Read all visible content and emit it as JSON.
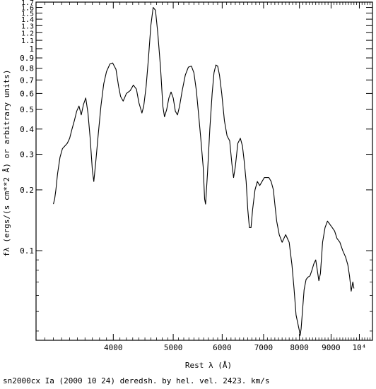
{
  "chart_data": {
    "type": "line",
    "title": "",
    "caption": "sn2000cx Ia (2000 10 24) deredsh. by hel. vel.  2423. km/s",
    "xlabel": "Rest λ (Å)",
    "ylabel": "fλ (ergs/(s cm**2 Å) or arbitrary units)",
    "x_scale": "log",
    "y_scale": "log",
    "xlim": [
      3000,
      10500
    ],
    "ylim": [
      0.036,
      1.7
    ],
    "x_ticks": [
      {
        "value": 4000,
        "label": "4000"
      },
      {
        "value": 5000,
        "label": "5000"
      },
      {
        "value": 6000,
        "label": "6000"
      },
      {
        "value": 7000,
        "label": "7000"
      },
      {
        "value": 8000,
        "label": "8000"
      },
      {
        "value": 9000,
        "label": "9000"
      },
      {
        "value": 10000,
        "label": "10⁴"
      }
    ],
    "y_ticks": [
      {
        "value": 0.1,
        "label": "0.1"
      },
      {
        "value": 0.2,
        "label": "0.2"
      },
      {
        "value": 0.3,
        "label": "0.3"
      },
      {
        "value": 0.4,
        "label": "0.4"
      },
      {
        "value": 0.5,
        "label": "0.5"
      },
      {
        "value": 0.6,
        "label": "0.6"
      },
      {
        "value": 0.7,
        "label": "0.7"
      },
      {
        "value": 0.8,
        "label": "0.8"
      },
      {
        "value": 0.9,
        "label": "0.9"
      },
      {
        "value": 1.0,
        "label": "1"
      },
      {
        "value": 1.1,
        "label": "1.1"
      },
      {
        "value": 1.2,
        "label": "1.2"
      },
      {
        "value": 1.3,
        "label": "1.3"
      },
      {
        "value": 1.4,
        "label": "1.4"
      },
      {
        "value": 1.5,
        "label": "1.5"
      },
      {
        "value": 1.6,
        "label": "1.6"
      },
      {
        "value": 1.7,
        "label": "1.7"
      }
    ],
    "series": [
      {
        "points": [
          [
            3200,
            0.17
          ],
          [
            3215,
            0.18
          ],
          [
            3230,
            0.2
          ],
          [
            3250,
            0.24
          ],
          [
            3280,
            0.29
          ],
          [
            3310,
            0.32
          ],
          [
            3340,
            0.33
          ],
          [
            3370,
            0.34
          ],
          [
            3400,
            0.36
          ],
          [
            3430,
            0.4
          ],
          [
            3460,
            0.44
          ],
          [
            3490,
            0.49
          ],
          [
            3520,
            0.52
          ],
          [
            3550,
            0.47
          ],
          [
            3580,
            0.53
          ],
          [
            3610,
            0.57
          ],
          [
            3640,
            0.48
          ],
          [
            3670,
            0.36
          ],
          [
            3700,
            0.25
          ],
          [
            3720,
            0.22
          ],
          [
            3745,
            0.27
          ],
          [
            3780,
            0.37
          ],
          [
            3820,
            0.52
          ],
          [
            3860,
            0.67
          ],
          [
            3900,
            0.77
          ],
          [
            3950,
            0.84
          ],
          [
            3990,
            0.85
          ],
          [
            4040,
            0.79
          ],
          [
            4080,
            0.65
          ],
          [
            4110,
            0.58
          ],
          [
            4150,
            0.55
          ],
          [
            4200,
            0.6
          ],
          [
            4260,
            0.62
          ],
          [
            4310,
            0.66
          ],
          [
            4360,
            0.63
          ],
          [
            4400,
            0.54
          ],
          [
            4450,
            0.48
          ],
          [
            4480,
            0.52
          ],
          [
            4520,
            0.65
          ],
          [
            4560,
            0.9
          ],
          [
            4600,
            1.3
          ],
          [
            4640,
            1.6
          ],
          [
            4680,
            1.55
          ],
          [
            4720,
            1.2
          ],
          [
            4770,
            0.8
          ],
          [
            4810,
            0.52
          ],
          [
            4840,
            0.46
          ],
          [
            4880,
            0.5
          ],
          [
            4920,
            0.57
          ],
          [
            4960,
            0.61
          ],
          [
            5000,
            0.57
          ],
          [
            5040,
            0.49
          ],
          [
            5080,
            0.47
          ],
          [
            5120,
            0.52
          ],
          [
            5170,
            0.62
          ],
          [
            5230,
            0.74
          ],
          [
            5290,
            0.81
          ],
          [
            5350,
            0.82
          ],
          [
            5400,
            0.76
          ],
          [
            5450,
            0.62
          ],
          [
            5500,
            0.46
          ],
          [
            5540,
            0.36
          ],
          [
            5590,
            0.26
          ],
          [
            5620,
            0.18
          ],
          [
            5640,
            0.17
          ],
          [
            5680,
            0.24
          ],
          [
            5730,
            0.4
          ],
          [
            5780,
            0.6
          ],
          [
            5820,
            0.76
          ],
          [
            5860,
            0.83
          ],
          [
            5900,
            0.82
          ],
          [
            5940,
            0.74
          ],
          [
            5990,
            0.6
          ],
          [
            6050,
            0.44
          ],
          [
            6110,
            0.37
          ],
          [
            6170,
            0.35
          ],
          [
            6220,
            0.27
          ],
          [
            6260,
            0.23
          ],
          [
            6300,
            0.26
          ],
          [
            6360,
            0.34
          ],
          [
            6420,
            0.36
          ],
          [
            6470,
            0.33
          ],
          [
            6510,
            0.28
          ],
          [
            6560,
            0.22
          ],
          [
            6600,
            0.16
          ],
          [
            6640,
            0.13
          ],
          [
            6680,
            0.13
          ],
          [
            6720,
            0.16
          ],
          [
            6780,
            0.2
          ],
          [
            6840,
            0.22
          ],
          [
            6900,
            0.21
          ],
          [
            6960,
            0.22
          ],
          [
            7020,
            0.23
          ],
          [
            7080,
            0.23
          ],
          [
            7140,
            0.23
          ],
          [
            7200,
            0.22
          ],
          [
            7260,
            0.2
          ],
          [
            7300,
            0.17
          ],
          [
            7350,
            0.14
          ],
          [
            7420,
            0.12
          ],
          [
            7500,
            0.11
          ],
          [
            7600,
            0.12
          ],
          [
            7700,
            0.11
          ],
          [
            7780,
            0.085
          ],
          [
            7840,
            0.065
          ],
          [
            7900,
            0.048
          ],
          [
            7960,
            0.043
          ],
          [
            8000,
            0.04
          ],
          [
            8020,
            0.038
          ],
          [
            8050,
            0.041
          ],
          [
            8090,
            0.05
          ],
          [
            8140,
            0.064
          ],
          [
            8200,
            0.072
          ],
          [
            8260,
            0.074
          ],
          [
            8320,
            0.075
          ],
          [
            8380,
            0.08
          ],
          [
            8440,
            0.086
          ],
          [
            8500,
            0.09
          ],
          [
            8550,
            0.08
          ],
          [
            8600,
            0.071
          ],
          [
            8650,
            0.077
          ],
          [
            8720,
            0.11
          ],
          [
            8800,
            0.13
          ],
          [
            8880,
            0.14
          ],
          [
            8960,
            0.135
          ],
          [
            9040,
            0.13
          ],
          [
            9120,
            0.125
          ],
          [
            9200,
            0.115
          ],
          [
            9300,
            0.11
          ],
          [
            9400,
            0.1
          ],
          [
            9500,
            0.093
          ],
          [
            9580,
            0.085
          ],
          [
            9640,
            0.075
          ],
          [
            9700,
            0.063
          ],
          [
            9760,
            0.07
          ],
          [
            9800,
            0.065
          ]
        ]
      }
    ]
  }
}
